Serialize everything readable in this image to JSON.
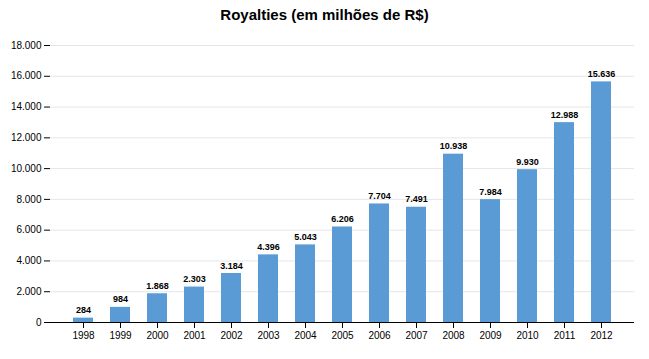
{
  "chart_data": {
    "type": "bar",
    "title": "Royalties (em milhões de R$)",
    "categories": [
      "1998",
      "1999",
      "2000",
      "2001",
      "2002",
      "2003",
      "2004",
      "2005",
      "2006",
      "2007",
      "2008",
      "2009",
      "2010",
      "2011",
      "2012"
    ],
    "values": [
      284,
      984,
      1868,
      2303,
      3184,
      4396,
      5043,
      6206,
      7704,
      7491,
      10938,
      7984,
      9930,
      12988,
      15636
    ],
    "value_labels": [
      "284",
      "984",
      "1.868",
      "2.303",
      "3.184",
      "4.396",
      "5.043",
      "6.206",
      "7.704",
      "7.491",
      "10.938",
      "7.984",
      "9.930",
      "12.988",
      "15.636"
    ],
    "data_labels": true,
    "color": "#5b9bd5",
    "ylim": [
      0,
      18000
    ],
    "yticks": [
      0,
      {
        "value": 2000,
        "label": "2.000"
      },
      {
        "value": 4000,
        "label": "4.000"
      },
      {
        "value": 6000,
        "label": "6.000"
      },
      {
        "value": 8000,
        "label": "8.000"
      },
      {
        "value": 10000,
        "label": "10.000"
      },
      {
        "value": 12000,
        "label": "12.000"
      },
      {
        "value": 14000,
        "label": "14.000"
      },
      {
        "value": 16000,
        "label": "16.000"
      },
      {
        "value": 18000,
        "label": "18.000"
      }
    ],
    "grid": true
  }
}
